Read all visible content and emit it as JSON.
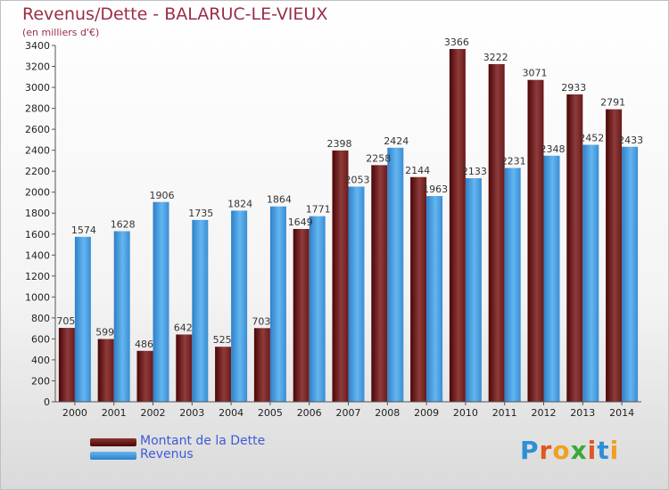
{
  "title": "Revenus/Dette - BALARUC-LE-VIEUX",
  "subtitle": "(en milliers d'€)",
  "logo_text": "Proxiti",
  "colors": {
    "dette_dark": "#5a0a0a",
    "dette_light": "#8a3535",
    "revenus_dark": "#2a78c0",
    "revenus_light": "#5cb0ee",
    "title": "#9b2d47",
    "legend_text": "#3e5bd8"
  },
  "legend": [
    {
      "label": "Montant de la Dette"
    },
    {
      "label": "Revenus"
    }
  ],
  "chart_data": {
    "type": "bar",
    "categories": [
      "2000",
      "2001",
      "2002",
      "2003",
      "2004",
      "2005",
      "2006",
      "2007",
      "2008",
      "2009",
      "2010",
      "2011",
      "2012",
      "2013",
      "2014"
    ],
    "series": [
      {
        "name": "Montant de la Dette",
        "values": [
          705,
          599,
          486,
          642,
          525,
          703,
          1649,
          2398,
          2258,
          2144,
          3366,
          3222,
          3071,
          2933,
          2791
        ],
        "labels": [
          "705",
          "599",
          "486",
          "642",
          "525",
          "703",
          "1649",
          "2398",
          "2258",
          "2144",
          "3366",
          "3222",
          "3071",
          "2933",
          "2791"
        ]
      },
      {
        "name": "Revenus",
        "values": [
          1574,
          1628,
          1906,
          1735,
          1824,
          1864,
          1771,
          2053,
          2424,
          1963,
          2133,
          2231,
          2348,
          2452,
          2433
        ],
        "labels": [
          "1574",
          "1628",
          "1906",
          "1735",
          "1824",
          "1864",
          "1771",
          "2053",
          "2424",
          "1963",
          "2133",
          "2231",
          "2348",
          "2452",
          "2433"
        ]
      }
    ],
    "ylim": [
      0,
      3400
    ],
    "yticks": [
      "0",
      "200",
      "400",
      "600",
      "800",
      "1000",
      "1200",
      "1400",
      "1600",
      "1800",
      "2000",
      "2200",
      "2400",
      "2600",
      "2800",
      "3000",
      "3200",
      "3400"
    ],
    "grid": false,
    "legend_position": "bottom-left"
  }
}
